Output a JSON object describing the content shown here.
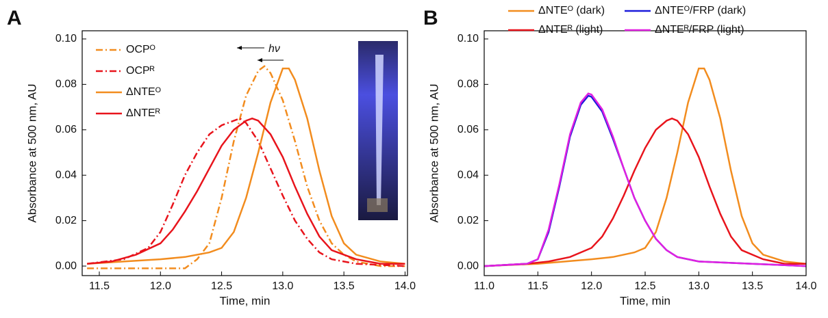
{
  "chart_data": [
    {
      "type": "line",
      "label": "A",
      "x_label": "Time, min",
      "y_label": "Absorbance at 500 nm, AU",
      "xlim": [
        11.36,
        14.02
      ],
      "ylim": [
        -0.0042,
        0.1036
      ],
      "xticks": [
        11.5,
        {
          "value": 12,
          "label": "12.0"
        },
        12.5,
        {
          "value": 13,
          "label": "13.0"
        },
        13.5,
        {
          "value": 14,
          "label": "14.0"
        }
      ],
      "yticks": [
        {
          "value": 0,
          "label": "0.00"
        },
        {
          "value": 0.02,
          "label": "0.02"
        },
        {
          "value": 0.04,
          "label": "0.04"
        },
        {
          "value": 0.06,
          "label": "0.06"
        },
        {
          "value": 0.08,
          "label": "0.08"
        },
        {
          "value": 0.1,
          "label": "0.10"
        }
      ],
      "legend": "upper left",
      "annotation": "hν",
      "series": [
        {
          "name": "OCPᴼ",
          "color": "#f28c1e",
          "dash": "dashdot",
          "x": [
            11.4,
            11.8,
            12.2,
            12.3,
            12.4,
            12.5,
            12.6,
            12.7,
            12.8,
            12.85,
            12.9,
            13.0,
            13.1,
            13.2,
            13.3,
            13.4,
            13.5,
            13.6,
            13.8,
            14.0
          ],
          "values": [
            -0.001,
            -0.001,
            -0.001,
            0.003,
            0.01,
            0.03,
            0.055,
            0.075,
            0.086,
            0.088,
            0.085,
            0.073,
            0.055,
            0.035,
            0.02,
            0.01,
            0.005,
            0.002,
            0,
            0
          ]
        },
        {
          "name": "OCPᴿ",
          "color": "#e8141c",
          "dash": "dashdot",
          "x": [
            11.4,
            11.7,
            11.9,
            12.0,
            12.1,
            12.2,
            12.3,
            12.4,
            12.5,
            12.6,
            12.65,
            12.7,
            12.8,
            12.9,
            13.0,
            13.1,
            13.2,
            13.3,
            13.4,
            13.6,
            14.0
          ],
          "values": [
            0.001,
            0.003,
            0.008,
            0.015,
            0.027,
            0.04,
            0.05,
            0.058,
            0.062,
            0.064,
            0.065,
            0.063,
            0.055,
            0.043,
            0.031,
            0.02,
            0.012,
            0.006,
            0.003,
            0.001,
            0
          ]
        },
        {
          "name": "ΔNTEᴼ",
          "color": "#f28c1e",
          "dash": "solid",
          "x": [
            11.4,
            11.7,
            12.0,
            12.2,
            12.4,
            12.5,
            12.6,
            12.7,
            12.8,
            12.9,
            13.0,
            13.05,
            13.1,
            13.2,
            13.3,
            13.4,
            13.5,
            13.6,
            13.8,
            14.0
          ],
          "values": [
            0.001,
            0.002,
            0.003,
            0.004,
            0.006,
            0.008,
            0.015,
            0.03,
            0.05,
            0.072,
            0.087,
            0.087,
            0.082,
            0.065,
            0.042,
            0.022,
            0.01,
            0.005,
            0.002,
            0.001
          ]
        },
        {
          "name": "ΔNTEᴿ",
          "color": "#e8141c",
          "dash": "solid",
          "x": [
            11.4,
            11.6,
            11.8,
            12.0,
            12.1,
            12.2,
            12.3,
            12.4,
            12.5,
            12.6,
            12.7,
            12.75,
            12.8,
            12.9,
            13.0,
            13.1,
            13.2,
            13.3,
            13.4,
            13.6,
            13.8,
            14.0
          ],
          "values": [
            0.001,
            0.002,
            0.005,
            0.01,
            0.016,
            0.024,
            0.033,
            0.043,
            0.053,
            0.06,
            0.064,
            0.065,
            0.064,
            0.058,
            0.048,
            0.035,
            0.023,
            0.013,
            0.007,
            0.003,
            0.001,
            0.001
          ]
        }
      ]
    },
    {
      "type": "line",
      "label": "B",
      "x_label": "Time, min",
      "y_label": "Absorbance at 500 nm, AU",
      "xlim": [
        11,
        14
      ],
      "ylim": [
        -0.0042,
        0.1036
      ],
      "xticks": [
        {
          "value": 11,
          "label": "11.0"
        },
        11.5,
        {
          "value": 12,
          "label": "12.0"
        },
        12.5,
        {
          "value": 13,
          "label": "13.0"
        },
        13.5,
        {
          "value": 14,
          "label": "14.0"
        }
      ],
      "yticks": [
        {
          "value": 0,
          "label": "0.00"
        },
        {
          "value": 0.02,
          "label": "0.02"
        },
        {
          "value": 0.04,
          "label": "0.04"
        },
        {
          "value": 0.06,
          "label": "0.06"
        },
        {
          "value": 0.08,
          "label": "0.08"
        },
        {
          "value": 0.1,
          "label": "0.10"
        }
      ],
      "legend": "top",
      "series": [
        {
          "name": "ΔNTEᴼ (dark)",
          "color": "#f28c1e",
          "dash": "solid",
          "x": [
            11.0,
            11.5,
            12.0,
            12.2,
            12.4,
            12.5,
            12.6,
            12.7,
            12.8,
            12.9,
            13.0,
            13.05,
            13.1,
            13.2,
            13.3,
            13.4,
            13.5,
            13.6,
            13.8,
            14.0
          ],
          "values": [
            0,
            0.001,
            0.003,
            0.004,
            0.006,
            0.008,
            0.015,
            0.03,
            0.05,
            0.072,
            0.087,
            0.087,
            0.082,
            0.065,
            0.042,
            0.022,
            0.01,
            0.005,
            0.002,
            0.001
          ]
        },
        {
          "name": "ΔNTEᴿ (light)",
          "color": "#e8141c",
          "dash": "solid",
          "x": [
            11.0,
            11.4,
            11.6,
            11.8,
            12.0,
            12.1,
            12.2,
            12.3,
            12.4,
            12.5,
            12.6,
            12.7,
            12.75,
            12.8,
            12.9,
            13.0,
            13.1,
            13.2,
            13.3,
            13.4,
            13.6,
            13.8,
            14.0
          ],
          "values": [
            0,
            0.001,
            0.002,
            0.004,
            0.008,
            0.013,
            0.021,
            0.031,
            0.042,
            0.052,
            0.06,
            0.064,
            0.065,
            0.064,
            0.058,
            0.048,
            0.035,
            0.023,
            0.013,
            0.007,
            0.003,
            0.001,
            0.001
          ]
        },
        {
          "name": "ΔNTEᴼ/FRP (dark)",
          "color": "#1a1adb",
          "dash": "solid",
          "x": [
            11.0,
            11.4,
            11.5,
            11.6,
            11.7,
            11.8,
            11.9,
            11.97,
            12.0,
            12.1,
            12.2,
            12.3,
            12.4,
            12.5,
            12.6,
            12.7,
            12.8,
            13.0,
            13.5,
            14.0
          ],
          "values": [
            0,
            0.001,
            0.003,
            0.015,
            0.035,
            0.057,
            0.071,
            0.075,
            0.0745,
            0.068,
            0.056,
            0.043,
            0.03,
            0.02,
            0.012,
            0.007,
            0.004,
            0.002,
            0.001,
            0
          ]
        },
        {
          "name": "ΔNTEᴿ/FRP (light)",
          "color": "#e020e0",
          "dash": "solid",
          "x": [
            11.0,
            11.4,
            11.5,
            11.6,
            11.7,
            11.8,
            11.9,
            11.97,
            12.0,
            12.1,
            12.2,
            12.3,
            12.4,
            12.5,
            12.6,
            12.7,
            12.8,
            13.0,
            13.5,
            14.0
          ],
          "values": [
            0,
            0.001,
            0.003,
            0.016,
            0.036,
            0.058,
            0.072,
            0.076,
            0.0755,
            0.069,
            0.057,
            0.043,
            0.03,
            0.02,
            0.012,
            0.007,
            0.004,
            0.002,
            0.001,
            0
          ]
        }
      ]
    }
  ]
}
